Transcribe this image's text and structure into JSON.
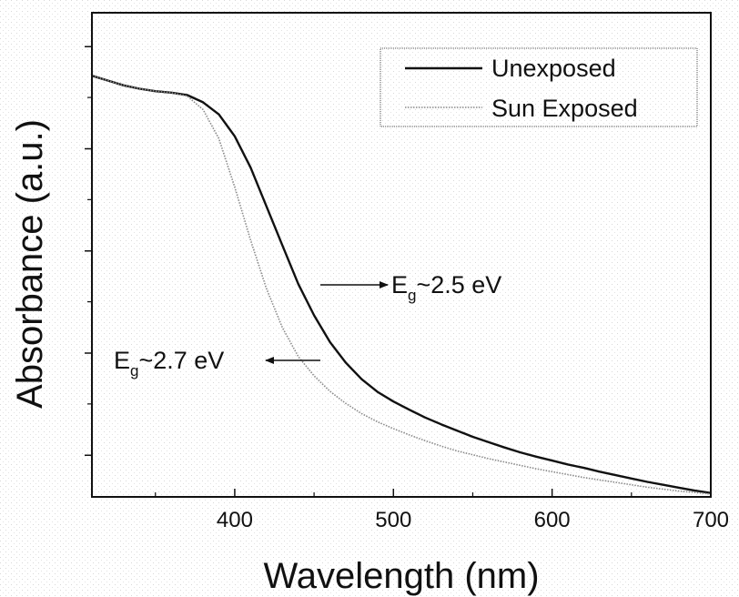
{
  "chart_data": {
    "type": "line",
    "title": "",
    "xlabel": "Wavelength (nm)",
    "ylabel": "Absorbance (a.u.)",
    "xlim": [
      310,
      700
    ],
    "ylim": [
      0,
      1
    ],
    "x_ticks": [
      {
        "value": 400,
        "label": "400"
      },
      {
        "value": 500,
        "label": "500"
      },
      {
        "value": 600,
        "label": "600"
      },
      {
        "value": 700,
        "label": "700"
      }
    ],
    "x_minor_ticks": [
      350,
      450,
      550,
      650
    ],
    "y_tick_labels_shown": false,
    "y_major_ticks": [
      0.086,
      0.297,
      0.508,
      0.719,
      0.93
    ],
    "y_minor_ticks": [
      0.192,
      0.403,
      0.614,
      0.825
    ],
    "grid": false,
    "legend": {
      "placement": "top-right",
      "entries": [
        {
          "label": "Unexposed",
          "color": "#111111",
          "style": "solid"
        },
        {
          "label": "Sun Exposed",
          "color": "#8a8a8a",
          "style": "dotted"
        }
      ]
    },
    "x": [
      310,
      320,
      330,
      340,
      350,
      360,
      370,
      380,
      390,
      400,
      410,
      420,
      430,
      440,
      450,
      460,
      470,
      480,
      490,
      500,
      510,
      520,
      530,
      540,
      550,
      560,
      570,
      580,
      590,
      600,
      610,
      620,
      630,
      640,
      650,
      660,
      670,
      680,
      690,
      700
    ],
    "series": [
      {
        "name": "Unexposed",
        "color": "#111111",
        "values": [
          0.87,
          0.86,
          0.85,
          0.843,
          0.838,
          0.835,
          0.83,
          0.815,
          0.79,
          0.745,
          0.68,
          0.6,
          0.52,
          0.44,
          0.375,
          0.32,
          0.277,
          0.243,
          0.217,
          0.197,
          0.18,
          0.164,
          0.15,
          0.137,
          0.124,
          0.113,
          0.102,
          0.092,
          0.083,
          0.075,
          0.067,
          0.06,
          0.052,
          0.045,
          0.038,
          0.031,
          0.025,
          0.019,
          0.013,
          0.008
        ]
      },
      {
        "name": "Sun Exposed",
        "color": "#8a8a8a",
        "values": [
          0.87,
          0.86,
          0.85,
          0.843,
          0.838,
          0.835,
          0.828,
          0.8,
          0.74,
          0.64,
          0.53,
          0.43,
          0.35,
          0.29,
          0.25,
          0.218,
          0.193,
          0.172,
          0.155,
          0.141,
          0.128,
          0.116,
          0.105,
          0.095,
          0.087,
          0.079,
          0.072,
          0.065,
          0.058,
          0.052,
          0.046,
          0.04,
          0.035,
          0.03,
          0.025,
          0.02,
          0.016,
          0.012,
          0.009,
          0.006
        ]
      }
    ],
    "annotations": [
      {
        "text_main": "E",
        "text_sub": "g",
        "text_rest": "~2.5 eV",
        "points_to_series": "Unexposed",
        "arrow_direction": "right"
      },
      {
        "text_main": "E",
        "text_sub": "g",
        "text_rest": "~2.7 eV",
        "points_to_series": "Sun Exposed",
        "arrow_direction": "left"
      }
    ]
  }
}
